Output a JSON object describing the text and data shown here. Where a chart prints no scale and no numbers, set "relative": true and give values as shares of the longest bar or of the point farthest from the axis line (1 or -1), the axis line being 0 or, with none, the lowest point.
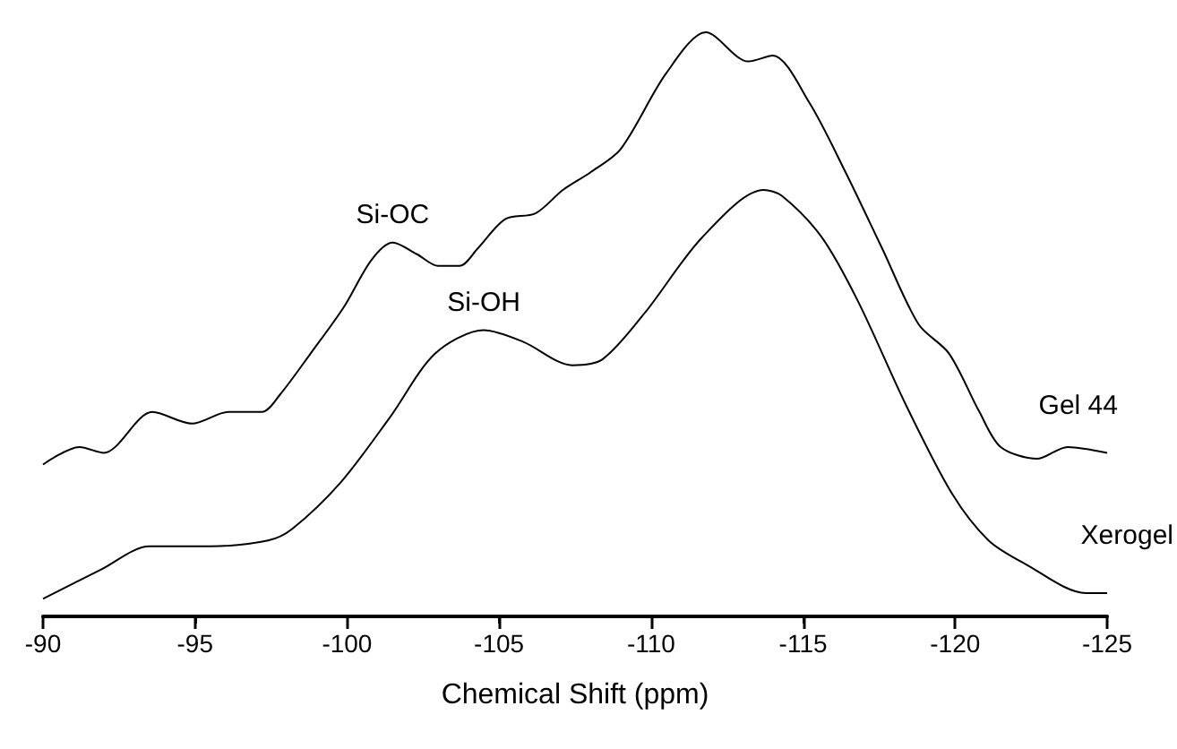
{
  "chart_data": {
    "type": "line",
    "xlabel": "Chemical Shift (ppm)",
    "relative": true,
    "marker": "none",
    "grid": false,
    "xlim": [
      -90,
      -125
    ],
    "xticks": [
      -90,
      -95,
      -100,
      -105,
      -110,
      -115,
      -120,
      -125
    ],
    "annotations": [
      {
        "text": "Si-OC",
        "x": -101.5,
        "y": 0.64
      },
      {
        "text": "Si-OH",
        "x": -104.5,
        "y": 0.49
      }
    ],
    "series": [
      {
        "name": "Gel 44",
        "color": "#000000",
        "x": [
          -90,
          -91.2,
          -92,
          -93.6,
          -94.9,
          -96.1,
          -97.2,
          -97.8,
          -98.8,
          -99.9,
          -100.8,
          -101.5,
          -102.3,
          -103,
          -103.7,
          -104.3,
          -105.2,
          -106.2,
          -107.1,
          -108,
          -109,
          -110.5,
          -111.8,
          -113.2,
          -114,
          -115.2,
          -116.4,
          -117.6,
          -118.8,
          -119.8,
          -120.8,
          -121.5,
          -122.7,
          -123.7,
          -125
        ],
        "values": [
          0.26,
          0.29,
          0.28,
          0.35,
          0.33,
          0.35,
          0.35,
          0.38,
          0.45,
          0.53,
          0.61,
          0.64,
          0.62,
          0.6,
          0.6,
          0.63,
          0.68,
          0.69,
          0.73,
          0.76,
          0.8,
          0.93,
          1.0,
          0.95,
          0.96,
          0.88,
          0.76,
          0.63,
          0.5,
          0.45,
          0.35,
          0.29,
          0.27,
          0.29,
          0.28
        ]
      },
      {
        "name": "Xerogel",
        "color": "#000000",
        "x": [
          -90,
          -91.9,
          -93.5,
          -95.5,
          -97.4,
          -98.2,
          -99.8,
          -101.4,
          -102.9,
          -104.5,
          -105.8,
          -107.4,
          -108.4,
          -109.8,
          -111.7,
          -113.7,
          -114.3,
          -115.6,
          -116.8,
          -118.4,
          -119.9,
          -121.1,
          -122.3,
          -124.3,
          -125
        ],
        "values": [
          0.03,
          0.08,
          0.12,
          0.12,
          0.13,
          0.15,
          0.23,
          0.34,
          0.45,
          0.49,
          0.47,
          0.43,
          0.44,
          0.52,
          0.65,
          0.73,
          0.72,
          0.65,
          0.54,
          0.36,
          0.21,
          0.13,
          0.09,
          0.04,
          0.04
        ]
      }
    ]
  }
}
